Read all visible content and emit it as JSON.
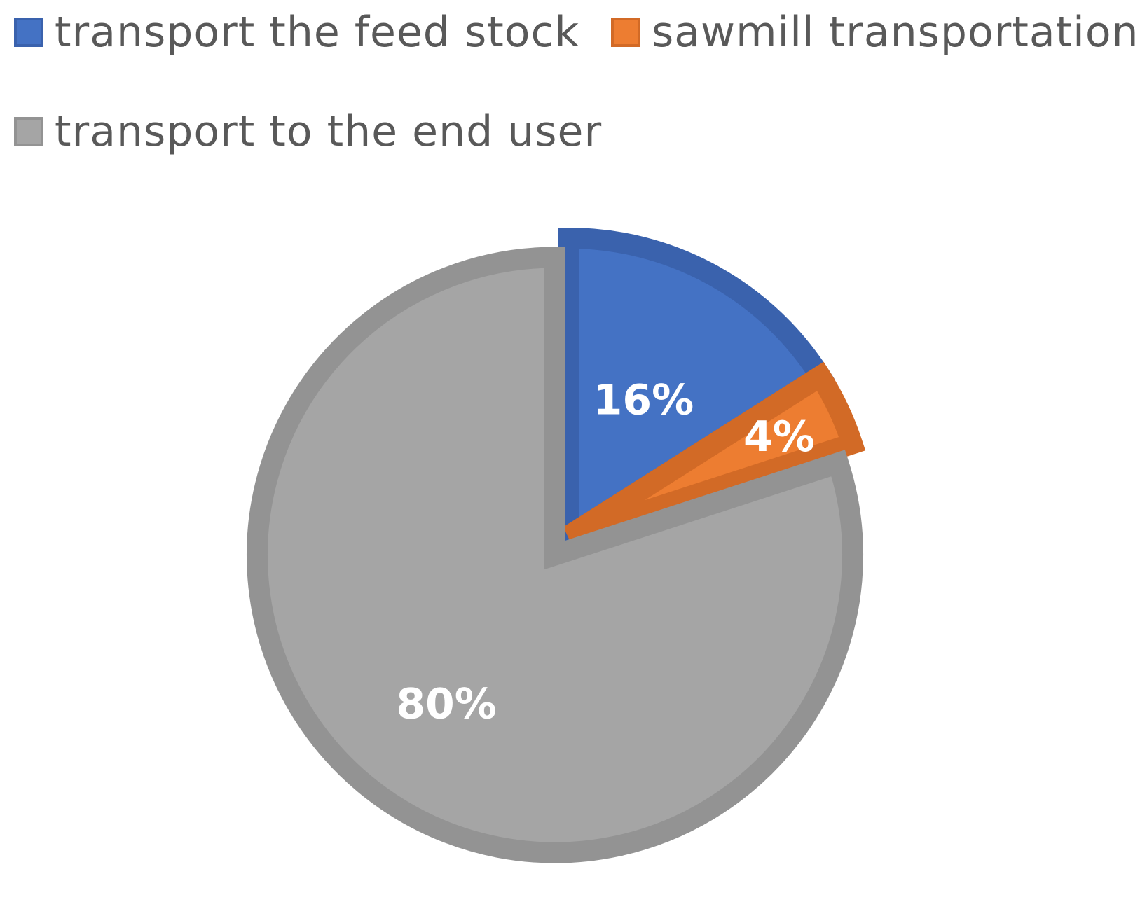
{
  "chart_data": {
    "type": "pie",
    "categories": [
      "transport the feed stock",
      "sawmill transportation",
      "transport to the end user"
    ],
    "values": [
      16,
      4,
      80
    ],
    "data_labels": [
      "16%",
      "4%",
      "80%"
    ],
    "colors": [
      "#4472c4",
      "#ed7d31",
      "#a5a5a5"
    ],
    "border_colors": [
      "#3a62ad",
      "#d26a26",
      "#939393"
    ],
    "legend_position": "top",
    "start_angle_deg": 0,
    "direction": "clockwise",
    "exploded_slice": "transport to the end user"
  }
}
